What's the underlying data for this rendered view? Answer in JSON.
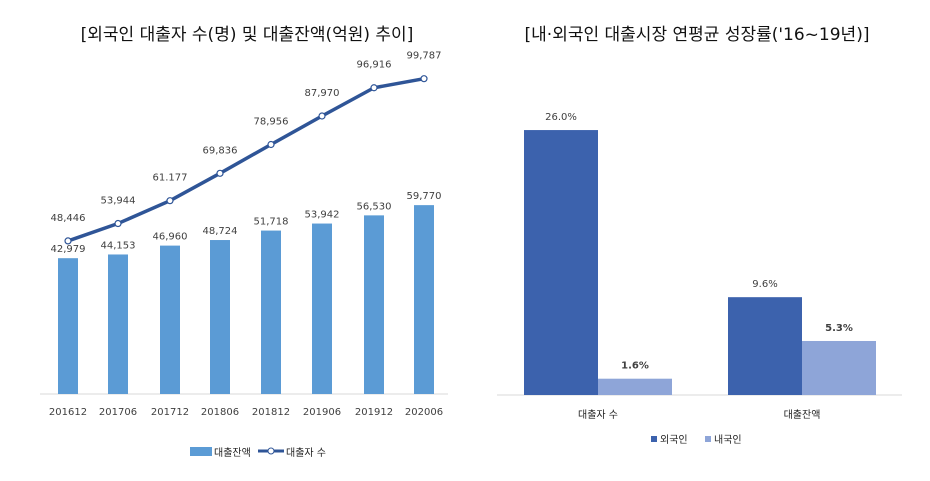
{
  "chart_data": [
    {
      "type": "bar+line",
      "title": "[외국인 대출자 수(명) 및 대출잔액(억원) 추이]",
      "categories": [
        "201612",
        "201706",
        "201712",
        "201806",
        "201812",
        "201906",
        "201912",
        "202006"
      ],
      "series": [
        {
          "name": "대출잔액",
          "type": "bar",
          "color": "#5b9bd5",
          "values": [
            42979,
            44153,
            46960,
            48724,
            51718,
            53942,
            56530,
            59770
          ],
          "labels": [
            "42,979",
            "44,153",
            "46,960",
            "48,724",
            "51,718",
            "53,942",
            "56,530",
            "59,770"
          ]
        },
        {
          "name": "대출자 수",
          "type": "line",
          "color": "#2f5597",
          "values": [
            48446,
            53944,
            61177,
            69836,
            78956,
            87970,
            96916,
            99787
          ],
          "labels": [
            "48,446",
            "53,944",
            "61.177",
            "69,836",
            "78,956",
            "87,970",
            "96,916",
            "99,787"
          ]
        }
      ],
      "legend": "bottom"
    },
    {
      "type": "bar",
      "title": "[내·외국인 대출시장 연평균 성장률('16~19년)]",
      "categories": [
        "대출자 수",
        "대출잔액"
      ],
      "series": [
        {
          "name": "외국인",
          "color": "#3c62ad",
          "values": [
            26.0,
            9.6
          ],
          "labels": [
            "26.0%",
            "9.6%"
          ]
        },
        {
          "name": "내국인",
          "color": "#8ea5d8",
          "values": [
            1.6,
            5.3
          ],
          "labels": [
            "1.6%",
            "5.3%"
          ]
        }
      ],
      "unit": "%",
      "legend": "bottom"
    }
  ]
}
